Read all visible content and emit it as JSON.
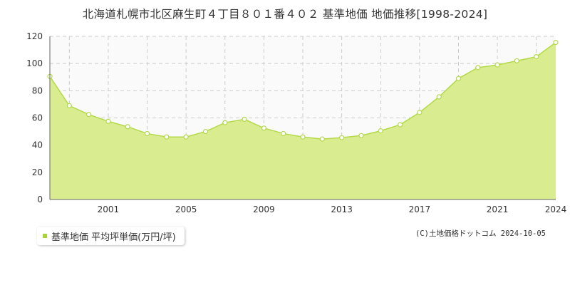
{
  "chart_data": {
    "type": "area",
    "title": "北海道札幌市北区麻生町４丁目８０１番４０２ 基準地価 地価推移[1998-2024]",
    "x": [
      1998,
      1999,
      2000,
      2001,
      2002,
      2003,
      2004,
      2005,
      2006,
      2007,
      2008,
      2009,
      2010,
      2011,
      2012,
      2013,
      2014,
      2015,
      2016,
      2017,
      2018,
      2019,
      2020,
      2021,
      2022,
      2023,
      2024
    ],
    "series": [
      {
        "name": "基準地価 平均坪単価(万円/坪)",
        "values": [
          90.5,
          69,
          62.5,
          57.5,
          53.5,
          48.5,
          46,
          46,
          50,
          56.5,
          59,
          52.5,
          48.5,
          46,
          44.5,
          45.5,
          47,
          50.5,
          55,
          64,
          75.5,
          89,
          97,
          99,
          102,
          105,
          115.5
        ]
      }
    ],
    "xticks": [
      2001,
      2005,
      2009,
      2013,
      2017,
      2021,
      2024
    ],
    "yticks": [
      0,
      20,
      40,
      60,
      80,
      100,
      120
    ],
    "xlim": [
      1998,
      2024
    ],
    "ylim": [
      0,
      120
    ],
    "grid": true,
    "legend_position": "bottom-left"
  },
  "colors": {
    "area_fill": "#d9ec8f",
    "line": "#b4d94a",
    "point_fill": "#ffffff",
    "grid": "#cccccc",
    "plot_background": "#fafafa",
    "legend_marker": "#a8d13a"
  },
  "copyright": "(C)土地価格ドットコム 2024-10-05"
}
